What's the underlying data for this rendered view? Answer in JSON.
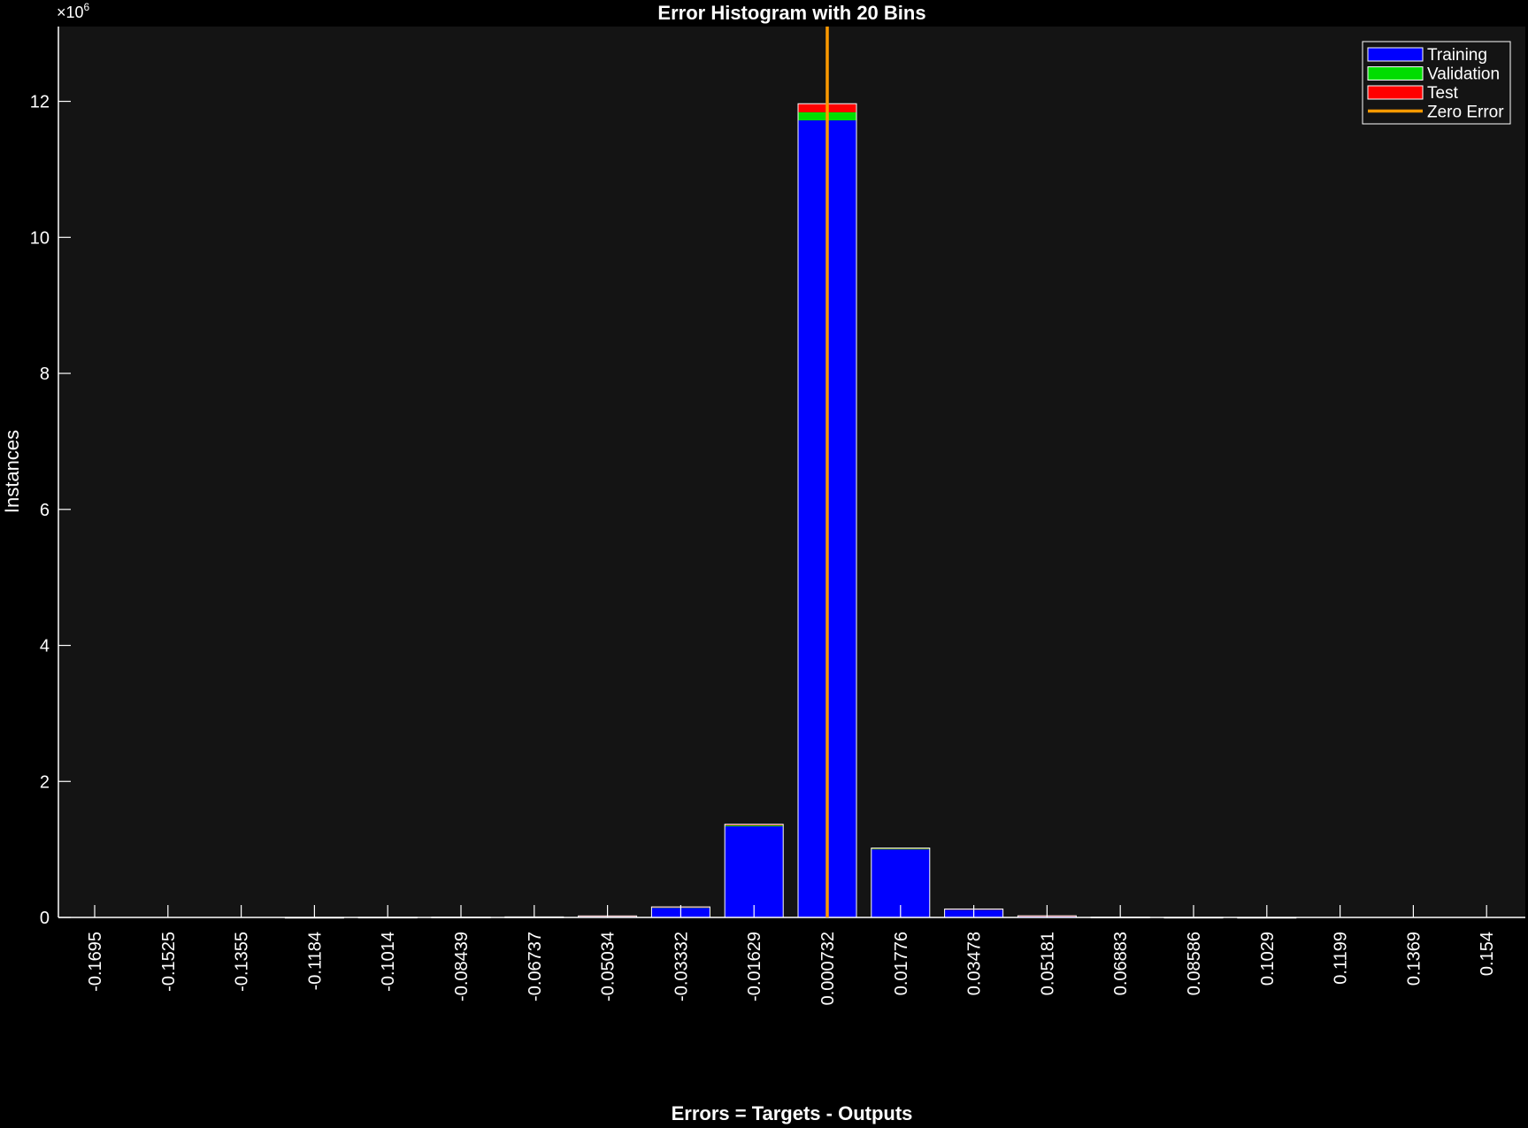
{
  "chart_data": {
    "type": "bar",
    "stacked": true,
    "title": "Error Histogram with 20 Bins",
    "xlabel": "Errors = Targets - Outputs",
    "ylabel": "Instances",
    "y_exponent_label": "×10",
    "y_exponent_power": "6",
    "ylim": [
      0,
      13100000
    ],
    "y_ticks": [
      0,
      2000000,
      4000000,
      6000000,
      8000000,
      10000000,
      12000000
    ],
    "y_tick_labels": [
      "0",
      "2",
      "4",
      "6",
      "8",
      "10",
      "12"
    ],
    "categories": [
      "-0.1695",
      "-0.1525",
      "-0.1355",
      "-0.1184",
      "-0.1014",
      "-0.08439",
      "-0.06737",
      "-0.05034",
      "-0.03332",
      "-0.01629",
      "0.000732",
      "0.01776",
      "0.03478",
      "0.05181",
      "0.06883",
      "0.08586",
      "0.1029",
      "0.1199",
      "0.1369",
      "0.154"
    ],
    "series": [
      {
        "name": "Training",
        "color": "#0000ff",
        "values": [
          0,
          0,
          0,
          1000,
          3000,
          5000,
          8000,
          20000,
          145000,
          1340000,
          11720000,
          1000000,
          120000,
          22000,
          5000,
          2000,
          1000,
          0,
          0,
          0
        ]
      },
      {
        "name": "Validation",
        "color": "#00dd00",
        "values": [
          0,
          0,
          0,
          0,
          0,
          0,
          0,
          1000,
          5000,
          15000,
          120000,
          10000,
          2000,
          1000,
          0,
          0,
          0,
          0,
          0,
          0
        ]
      },
      {
        "name": "Test",
        "color": "#ff0000",
        "values": [
          0,
          0,
          0,
          0,
          0,
          0,
          0,
          1000,
          5000,
          15000,
          125000,
          10000,
          2000,
          1000,
          0,
          0,
          0,
          0,
          0,
          0
        ]
      }
    ],
    "zero_error": {
      "name": "Zero Error",
      "color": "#ff9a00",
      "category_position": 10.0
    },
    "grid": false,
    "legend_position": "top-right",
    "background": "#141414",
    "axis_color": "#ffffff"
  }
}
